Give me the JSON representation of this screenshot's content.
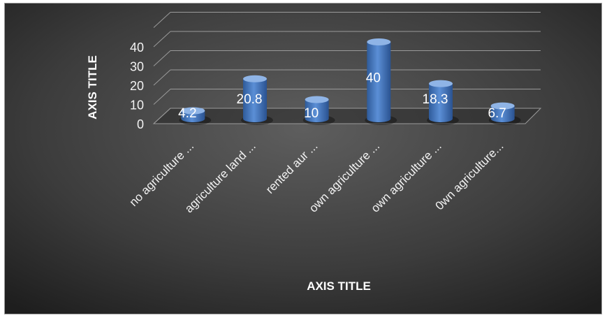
{
  "chart_data": {
    "type": "bar",
    "style": "3d-cylinder",
    "categories": [
      "no agriculture ...",
      "agriculture land ...",
      "rented aur ...",
      "own agriculture ...",
      "own agriculture ...",
      "0wn agriculture..."
    ],
    "values": [
      4.2,
      20.8,
      10,
      40,
      18.3,
      6.7
    ],
    "data_labels": [
      "4.2",
      "20.8",
      "10",
      "40",
      "18.3",
      "6.7"
    ],
    "xlabel": "AXIS TITLE",
    "ylabel": "AXIS TITLE",
    "ylim": [
      0,
      50
    ],
    "yticks": [
      0,
      10,
      20,
      30,
      40
    ],
    "grid": true,
    "legend": "none",
    "colors": {
      "bar": "#4f81bd",
      "bar_dark": "#2f5b9a",
      "bar_light": "#8fb4e6",
      "background_center": "#5e5e5e",
      "background_edge": "#1e1e1e",
      "grid": "#9a9a9a"
    }
  }
}
